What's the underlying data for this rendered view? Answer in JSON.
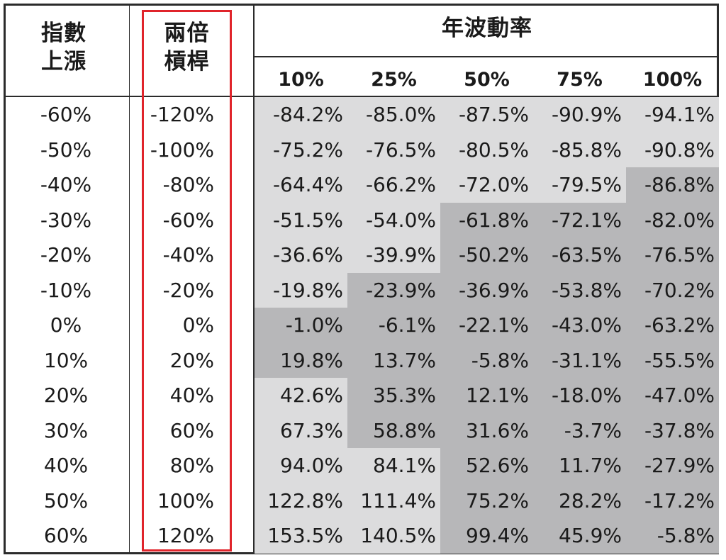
{
  "header": {
    "index_change_line1": "指數",
    "index_change_line2": "上漲",
    "leverage_line1": "兩倍",
    "leverage_line2": "槓桿",
    "volatility": "年波動率"
  },
  "colors": {
    "light": "#dcdcdd",
    "dark": "#b7b7b9",
    "highlight_border": "#e0242b"
  },
  "chart_data": {
    "type": "table",
    "title": "",
    "row_header_1": "指數上漲",
    "row_header_2": "兩倍槓桿",
    "column_group": "年波動率",
    "columns": [
      "10%",
      "25%",
      "50%",
      "75%",
      "100%"
    ],
    "index_change": [
      "-60%",
      "-50%",
      "-40%",
      "-30%",
      "-20%",
      "-10%",
      "0%",
      "10%",
      "20%",
      "30%",
      "40%",
      "50%",
      "60%"
    ],
    "leverage_2x": [
      "-120%",
      "-100%",
      "-80%",
      "-60%",
      "-40%",
      "-20%",
      "0%",
      "20%",
      "40%",
      "60%",
      "80%",
      "100%",
      "120%"
    ],
    "values": [
      [
        "-84.2%",
        "-85.0%",
        "-87.5%",
        "-90.9%",
        "-94.1%"
      ],
      [
        "-75.2%",
        "-76.5%",
        "-80.5%",
        "-85.8%",
        "-90.8%"
      ],
      [
        "-64.4%",
        "-66.2%",
        "-72.0%",
        "-79.5%",
        "-86.8%"
      ],
      [
        "-51.5%",
        "-54.0%",
        "-61.8%",
        "-72.1%",
        "-82.0%"
      ],
      [
        "-36.6%",
        "-39.9%",
        "-50.2%",
        "-63.5%",
        "-76.5%"
      ],
      [
        "-19.8%",
        "-23.9%",
        "-36.9%",
        "-53.8%",
        "-70.2%"
      ],
      [
        "-1.0%",
        "-6.1%",
        "-22.1%",
        "-43.0%",
        "-63.2%"
      ],
      [
        "19.8%",
        "13.7%",
        "-5.8%",
        "-31.1%",
        "-55.5%"
      ],
      [
        "42.6%",
        "35.3%",
        "12.1%",
        "-18.0%",
        "-47.0%"
      ],
      [
        "67.3%",
        "58.8%",
        "31.6%",
        "-3.7%",
        "-37.8%"
      ],
      [
        "94.0%",
        "84.1%",
        "52.6%",
        "11.7%",
        "-27.9%"
      ],
      [
        "122.8%",
        "111.4%",
        "75.2%",
        "28.2%",
        "-17.2%"
      ],
      [
        "153.5%",
        "140.5%",
        "99.4%",
        "45.9%",
        "-5.8%"
      ]
    ],
    "shading": [
      [
        "light",
        "light",
        "light",
        "light",
        "light"
      ],
      [
        "light",
        "light",
        "light",
        "light",
        "light"
      ],
      [
        "light",
        "light",
        "light",
        "light",
        "dark"
      ],
      [
        "light",
        "light",
        "dark",
        "dark",
        "dark"
      ],
      [
        "light",
        "light",
        "dark",
        "dark",
        "dark"
      ],
      [
        "light",
        "dark",
        "dark",
        "dark",
        "dark"
      ],
      [
        "dark",
        "dark",
        "dark",
        "dark",
        "dark"
      ],
      [
        "dark",
        "dark",
        "dark",
        "dark",
        "dark"
      ],
      [
        "light",
        "dark",
        "dark",
        "dark",
        "dark"
      ],
      [
        "light",
        "dark",
        "dark",
        "dark",
        "dark"
      ],
      [
        "light",
        "light",
        "dark",
        "dark",
        "dark"
      ],
      [
        "light",
        "light",
        "dark",
        "dark",
        "dark"
      ],
      [
        "light",
        "light",
        "dark",
        "dark",
        "dark"
      ]
    ],
    "highlighted_column": "兩倍槓桿"
  }
}
